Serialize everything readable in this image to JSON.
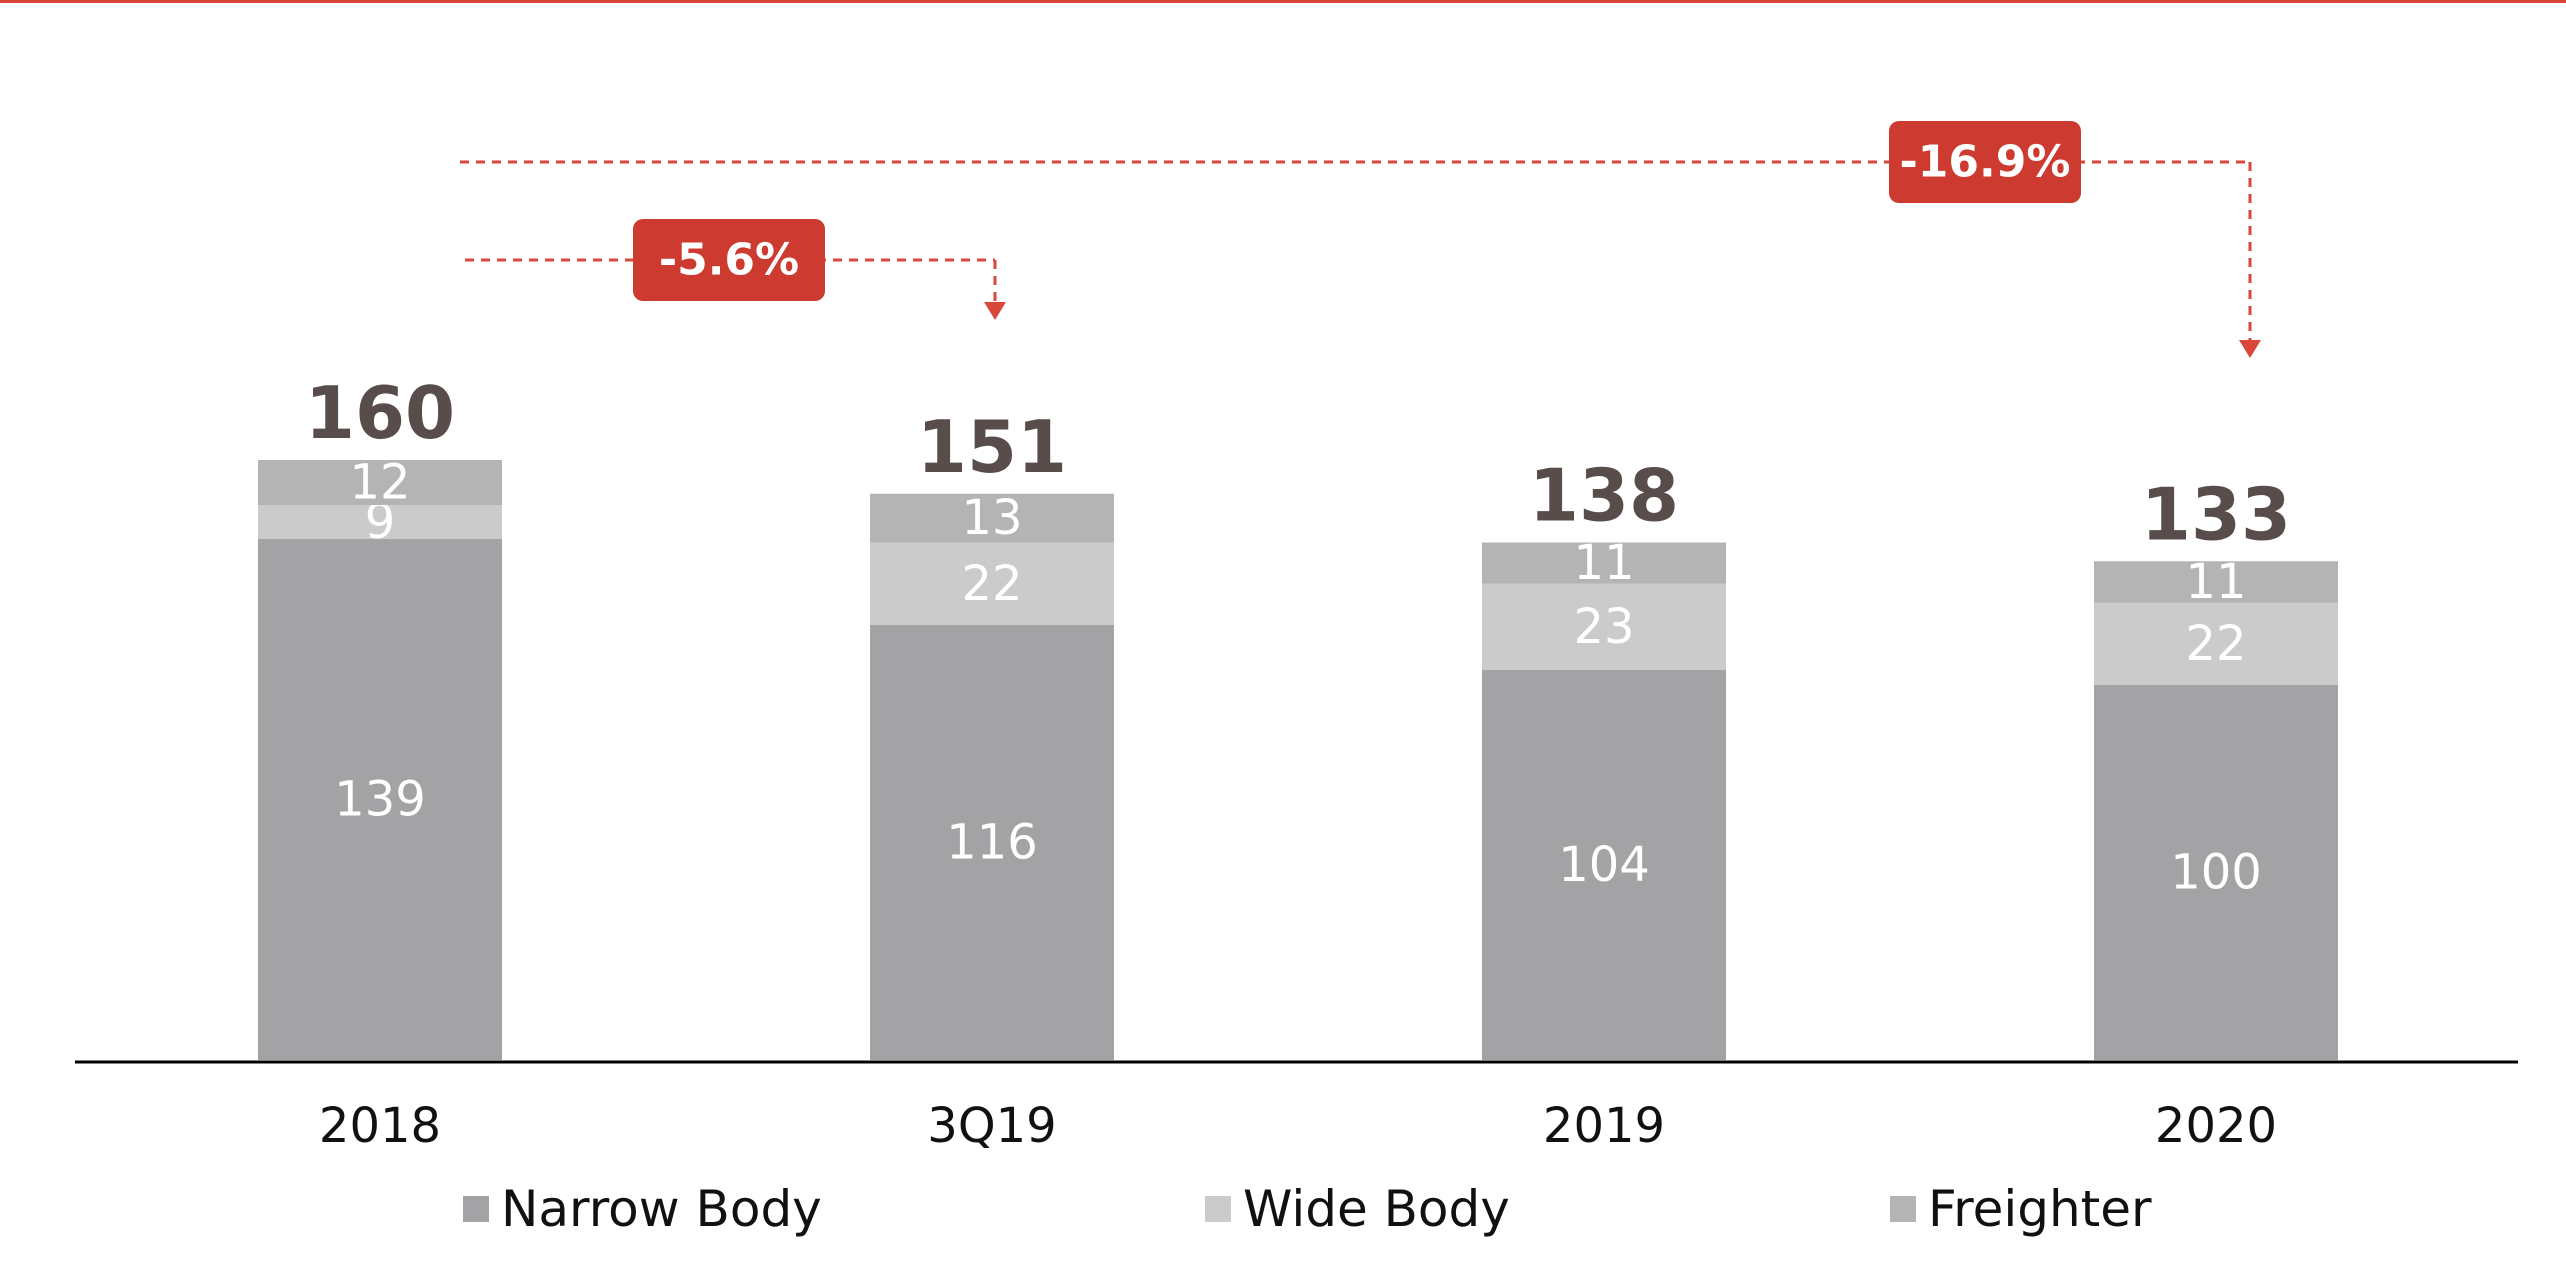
{
  "chart_data": {
    "type": "bar",
    "stacked": true,
    "categories": [
      "2018",
      "3Q19",
      "2019",
      "2020"
    ],
    "series": [
      {
        "name": "Narrow Body",
        "values": [
          139,
          116,
          104,
          100
        ],
        "color": "#a3a3a5"
      },
      {
        "name": "Wide Body",
        "values": [
          9,
          22,
          23,
          22
        ],
        "color": "#cbcbcb"
      },
      {
        "name": "Freighter",
        "values": [
          12,
          13,
          11,
          11
        ],
        "color": "#b4b4b5"
      }
    ],
    "totals": [
      "160",
      "151",
      "138",
      "133"
    ],
    "ylim": [
      0,
      160
    ],
    "grid": false,
    "legend": "bottom",
    "title": "",
    "xlabel": "",
    "ylabel": "",
    "annotations": [
      {
        "text": "-5.6%",
        "from": "2018",
        "to": "3Q19"
      },
      {
        "text": "-16.9%",
        "from": "2018",
        "to": "2020"
      }
    ],
    "colors": {
      "accent": "#d9473a",
      "callout": "#cc3a30",
      "total_text": "#594d4b"
    }
  }
}
